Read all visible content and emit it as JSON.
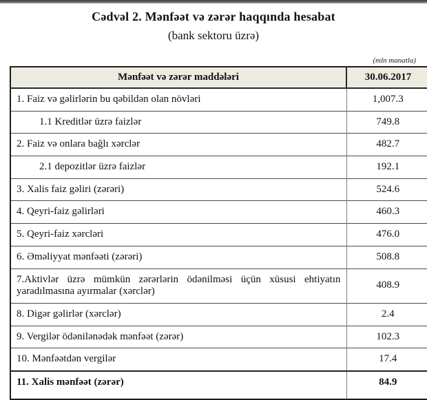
{
  "page": {
    "title": "Cədvəl 2. Mənfəət və zərər haqqında hesabat",
    "subtitle": "(bank sektoru üzrə)",
    "unit_note": "(mln manatla)"
  },
  "colors": {
    "header_bg": "#edeadf",
    "outer_border": "#1c1c1c",
    "top_bar": "#3d3d3d"
  },
  "table": {
    "header": {
      "items_label": "Mənfəət və zərər maddələri",
      "date_label": "30.06.2017"
    },
    "rows": [
      {
        "label": "1. Faiz və gəlirlərin bu qəbildən olan növləri",
        "value": "1,007.3",
        "indent": false,
        "bold": false,
        "justify": false
      },
      {
        "label": "1.1 Kreditlər üzrə faizlər",
        "value": "749.8",
        "indent": true,
        "bold": false,
        "justify": false
      },
      {
        "label": "2. Faiz və onlara bağlı xərclər",
        "value": "482.7",
        "indent": false,
        "bold": false,
        "justify": false
      },
      {
        "label": "2.1 depozitlər üzrə faizlər",
        "value": "192.1",
        "indent": true,
        "bold": false,
        "justify": false
      },
      {
        "label": "3. Xalis faiz gəliri (zərəri)",
        "value": "524.6",
        "indent": false,
        "bold": false,
        "justify": false
      },
      {
        "label": "4. Qeyri-faiz gəlirləri",
        "value": "460.3",
        "indent": false,
        "bold": false,
        "justify": false
      },
      {
        "label": "5. Qeyri-faiz xərcləri",
        "value": "476.0",
        "indent": false,
        "bold": false,
        "justify": false
      },
      {
        "label": "6. Əməliyyat mənfəəti (zərəri)",
        "value": "508.8",
        "indent": false,
        "bold": false,
        "justify": false
      },
      {
        "label": "7.Aktivlər üzrə mümkün zərərlərin ödənilməsi üçün xüsusi ehtiyatın yaradılmasına ayırmalar (xərclər)",
        "value": "408.9",
        "indent": false,
        "bold": false,
        "justify": true
      },
      {
        "label": "8. Digər gəlirlər (xərclər)",
        "value": "2.4",
        "indent": false,
        "bold": false,
        "justify": false
      },
      {
        "label": "9. Vergilər ödənilənədək mənfəət (zərər)",
        "value": "102.3",
        "indent": false,
        "bold": false,
        "justify": false
      },
      {
        "label": "10. Mənfəətdən vergilər",
        "value": "17.4",
        "indent": false,
        "bold": false,
        "justify": false
      },
      {
        "label": "11. Xalis mənfəət (zərər)",
        "value": "84.9",
        "indent": false,
        "bold": true,
        "justify": false
      }
    ]
  }
}
